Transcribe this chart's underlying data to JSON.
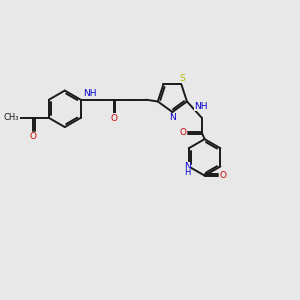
{
  "bg_color": "#e8e8e8",
  "bond_color": "#1a1a1a",
  "N_color": "#0000cc",
  "O_color": "#cc0000",
  "S_color": "#b8b800",
  "line_width": 1.4,
  "font_size": 6.5,
  "figsize": [
    3.0,
    3.0
  ],
  "dpi": 100,
  "xlim": [
    0,
    10
  ],
  "ylim": [
    0,
    10
  ]
}
